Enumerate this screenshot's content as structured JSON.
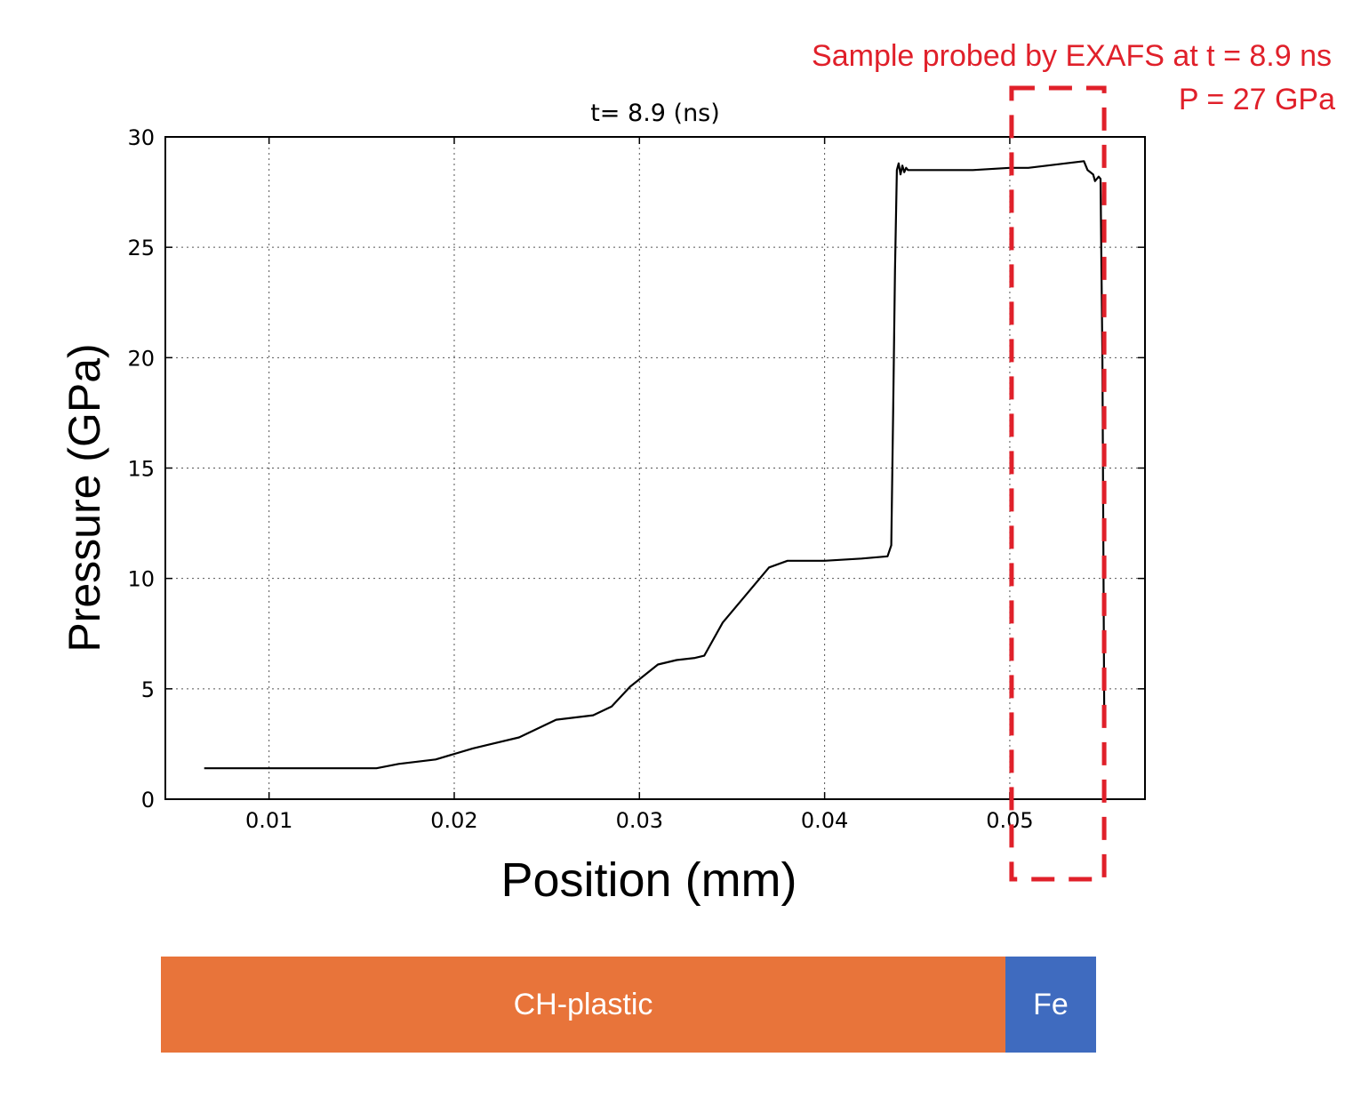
{
  "annotation": {
    "line1": "Sample probed by EXAFS at t = 8.9 ns",
    "line2": "P = 27 GPa",
    "color": "#e0202a"
  },
  "layers": [
    {
      "label": "CH-plastic",
      "color": "#e8743a"
    },
    {
      "label": "Fe",
      "color": "#3f6bbf"
    }
  ],
  "chart_data": {
    "type": "line",
    "title": "t= 8.9 (ns)",
    "xlabel": "Position (mm)",
    "ylabel": "Pressure (GPa)",
    "xlim": [
      0.0044,
      0.0573
    ],
    "ylim": [
      0,
      30
    ],
    "xticks": [
      0.01,
      0.02,
      0.03,
      0.04,
      0.05
    ],
    "xtick_labels": [
      "0.01",
      "0.02",
      "0.03",
      "0.04",
      "0.05"
    ],
    "yticks": [
      0,
      5,
      10,
      15,
      20,
      25,
      30
    ],
    "ytick_labels": [
      "0",
      "5",
      "10",
      "15",
      "20",
      "25",
      "30"
    ],
    "grid": true,
    "series": [
      {
        "line_color": "#000000",
        "x": [
          0.0065,
          0.01,
          0.013,
          0.0158,
          0.017,
          0.019,
          0.021,
          0.022,
          0.0235,
          0.0255,
          0.0265,
          0.0275,
          0.0285,
          0.0295,
          0.031,
          0.032,
          0.033,
          0.0335,
          0.0345,
          0.036,
          0.037,
          0.038,
          0.04,
          0.042,
          0.0434,
          0.0436,
          0.0437,
          0.0438,
          0.0439,
          0.044,
          0.0441,
          0.0442,
          0.0443,
          0.0444,
          0.0445,
          0.046,
          0.048,
          0.05,
          0.051,
          0.052,
          0.053,
          0.054,
          0.0542,
          0.0545,
          0.0546,
          0.0548,
          0.0549,
          0.055,
          0.0551
        ],
        "y": [
          1.4,
          1.4,
          1.4,
          1.4,
          1.6,
          1.8,
          2.3,
          2.5,
          2.8,
          3.6,
          3.7,
          3.8,
          4.2,
          5.1,
          6.1,
          6.3,
          6.4,
          6.5,
          8.0,
          9.5,
          10.5,
          10.8,
          10.8,
          10.9,
          11.0,
          11.5,
          17.5,
          24.0,
          28.5,
          28.8,
          28.3,
          28.7,
          28.4,
          28.6,
          28.5,
          28.5,
          28.5,
          28.6,
          28.6,
          28.7,
          28.8,
          28.9,
          28.5,
          28.3,
          28.0,
          28.2,
          28.1,
          20.0,
          3.5
        ]
      }
    ],
    "highlight_box": {
      "x_range": [
        0.05,
        0.055
      ],
      "style": "dashed",
      "color": "#e0202a"
    }
  }
}
